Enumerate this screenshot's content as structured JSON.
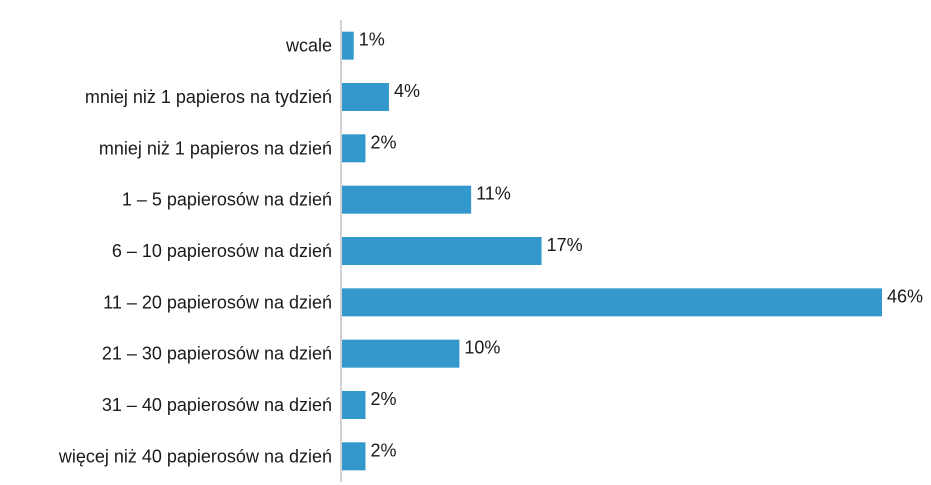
{
  "chart_data": {
    "type": "bar",
    "orientation": "horizontal",
    "categories": [
      "wcale",
      "mniej niż 1 papieros na tydzień",
      "mniej niż 1 papieros na dzień",
      "1 – 5 papierosów na dzień",
      "6 – 10 papierosów na dzień",
      "11 – 20 papierosów na dzień",
      "21 – 30 papierosów na dzień",
      "31 – 40 papierosów na dzień",
      "więcej niż 40 papierosów na dzień"
    ],
    "values": [
      1,
      4,
      2,
      11,
      17,
      46,
      10,
      2,
      2
    ],
    "data_labels": [
      "1%",
      "4%",
      "2%",
      "11%",
      "17%",
      "46%",
      "10%",
      "2%",
      "2%"
    ],
    "value_unit": "%",
    "xlim": [
      0,
      46
    ],
    "grid": false,
    "legend": "none",
    "bar_color": "#3399cc"
  }
}
